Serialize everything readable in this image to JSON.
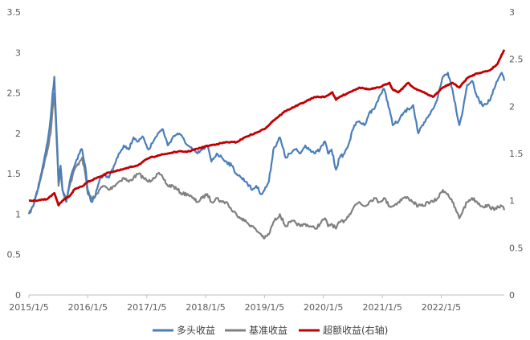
{
  "chart_data": {
    "type": "line",
    "title": "",
    "xlabel": "",
    "ylabel": "",
    "x_ticks": [
      "2015/1/5",
      "2016/1/5",
      "2017/1/5",
      "2018/1/5",
      "2019/1/5",
      "2020/1/5",
      "2021/1/5",
      "2022/1/5"
    ],
    "xlim": [
      "2015/1/5",
      "2023/1/31"
    ],
    "left_axis": {
      "ticks": [
        "0",
        "0.5",
        "1",
        "1.5",
        "2",
        "2.5",
        "3",
        "3.5"
      ],
      "ylim": [
        0,
        3.5
      ]
    },
    "right_axis": {
      "ticks": [
        "0",
        "0.5",
        "1",
        "1.5",
        "2",
        "2.5",
        "3"
      ],
      "ylim": [
        0,
        3
      ]
    },
    "grid": false,
    "legend_position": "bottom",
    "series": [
      {
        "name": "多头收益",
        "axis": "left",
        "color": "#4a7ebb",
        "x": [
          "2015/1/5",
          "2015/2/1",
          "2015/3/1",
          "2015/4/1",
          "2015/5/1",
          "2015/5/20",
          "2015/6/1",
          "2015/6/12",
          "2015/6/20",
          "2015/7/1",
          "2015/7/8",
          "2015/7/20",
          "2015/8/1",
          "2015/8/25",
          "2015/9/15",
          "2015/10/15",
          "2015/11/15",
          "2015/12/1",
          "2015/12/20",
          "2016/1/5",
          "2016/1/28",
          "2016/2/15",
          "2016/3/15",
          "2016/4/15",
          "2016/5/15",
          "2016/6/15",
          "2016/7/15",
          "2016/8/15",
          "2016/9/15",
          "2016/10/15",
          "2016/11/15",
          "2016/12/15",
          "2017/1/15",
          "2017/2/15",
          "2017/3/15",
          "2017/4/15",
          "2017/5/15",
          "2017/6/15",
          "2017/7/15",
          "2017/8/15",
          "2017/9/15",
          "2017/10/15",
          "2017/11/15",
          "2017/12/15",
          "2018/1/15",
          "2018/2/10",
          "2018/3/15",
          "2018/4/15",
          "2018/5/15",
          "2018/6/15",
          "2018/7/15",
          "2018/8/15",
          "2018/9/15",
          "2018/10/20",
          "2018/11/15",
          "2018/12/15",
          "2019/1/5",
          "2019/2/1",
          "2019/3/1",
          "2019/4/10",
          "2019/5/15",
          "2019/6/15",
          "2019/7/15",
          "2019/8/15",
          "2019/9/15",
          "2019/10/15",
          "2019/11/15",
          "2019/12/15",
          "2020/1/15",
          "2020/2/3",
          "2020/2/25",
          "2020/3/23",
          "2020/4/15",
          "2020/5/15",
          "2020/6/15",
          "2020/7/15",
          "2020/8/15",
          "2020/9/15",
          "2020/10/15",
          "2020/11/15",
          "2020/12/15",
          "2021/1/15",
          "2021/2/18",
          "2021/3/10",
          "2021/4/15",
          "2021/5/15",
          "2021/6/15",
          "2021/7/15",
          "2021/8/15",
          "2021/9/15",
          "2021/10/15",
          "2021/11/15",
          "2021/12/15",
          "2022/1/15",
          "2022/2/15",
          "2022/3/15",
          "2022/4/27",
          "2022/5/20",
          "2022/6/15",
          "2022/7/15",
          "2022/8/15",
          "2022/9/15",
          "2022/10/31",
          "2022/11/30",
          "2022/12/20",
          "2023/1/15",
          "2023/1/31"
        ],
        "y": [
          1.0,
          1.1,
          1.3,
          1.6,
          1.9,
          2.2,
          2.5,
          2.7,
          2.3,
          1.8,
          1.4,
          1.6,
          1.3,
          1.15,
          1.4,
          1.6,
          1.75,
          1.8,
          1.6,
          1.3,
          1.15,
          1.2,
          1.4,
          1.5,
          1.45,
          1.6,
          1.75,
          1.85,
          1.8,
          1.95,
          1.9,
          1.95,
          1.8,
          1.9,
          2.0,
          2.05,
          1.85,
          1.95,
          2.0,
          1.95,
          1.85,
          1.8,
          1.75,
          1.8,
          1.85,
          1.65,
          1.75,
          1.7,
          1.65,
          1.6,
          1.5,
          1.45,
          1.4,
          1.3,
          1.35,
          1.25,
          1.3,
          1.4,
          1.8,
          1.95,
          1.7,
          1.75,
          1.8,
          1.75,
          1.85,
          1.8,
          1.75,
          1.8,
          1.9,
          1.75,
          1.8,
          1.55,
          1.7,
          1.75,
          1.9,
          2.1,
          2.15,
          2.1,
          2.25,
          2.3,
          2.45,
          2.55,
          2.3,
          2.1,
          2.15,
          2.25,
          2.3,
          2.35,
          2.0,
          2.1,
          2.2,
          2.3,
          2.45,
          2.7,
          2.75,
          2.55,
          2.1,
          2.3,
          2.6,
          2.65,
          2.45,
          2.35,
          2.4,
          2.55,
          2.65,
          2.75,
          2.65
        ]
      },
      {
        "name": "基准收益",
        "axis": "left",
        "color": "#808080",
        "x": [
          "2015/1/5",
          "2015/2/1",
          "2015/3/1",
          "2015/4/1",
          "2015/5/1",
          "2015/5/20",
          "2015/6/1",
          "2015/6/12",
          "2015/6/20",
          "2015/7/1",
          "2015/7/8",
          "2015/7/20",
          "2015/8/1",
          "2015/8/25",
          "2015/9/15",
          "2015/10/15",
          "2015/11/15",
          "2015/12/1",
          "2015/12/20",
          "2016/1/5",
          "2016/1/28",
          "2016/2/15",
          "2016/3/15",
          "2016/4/15",
          "2016/5/15",
          "2016/6/15",
          "2016/7/15",
          "2016/8/15",
          "2016/9/15",
          "2016/10/15",
          "2016/11/15",
          "2016/12/15",
          "2017/1/15",
          "2017/2/15",
          "2017/3/15",
          "2017/4/15",
          "2017/5/15",
          "2017/6/15",
          "2017/7/15",
          "2017/8/15",
          "2017/9/15",
          "2017/10/15",
          "2017/11/15",
          "2017/12/15",
          "2018/1/15",
          "2018/2/10",
          "2018/3/15",
          "2018/4/15",
          "2018/5/15",
          "2018/6/15",
          "2018/7/15",
          "2018/8/15",
          "2018/9/15",
          "2018/10/20",
          "2018/11/15",
          "2018/12/15",
          "2019/1/5",
          "2019/2/1",
          "2019/3/1",
          "2019/4/10",
          "2019/5/15",
          "2019/6/15",
          "2019/7/15",
          "2019/8/15",
          "2019/9/15",
          "2019/10/15",
          "2019/11/15",
          "2019/12/15",
          "2020/1/15",
          "2020/2/3",
          "2020/2/25",
          "2020/3/23",
          "2020/4/15",
          "2020/5/15",
          "2020/6/15",
          "2020/7/15",
          "2020/8/15",
          "2020/9/15",
          "2020/10/15",
          "2020/11/15",
          "2020/12/15",
          "2021/1/15",
          "2021/2/18",
          "2021/3/10",
          "2021/4/15",
          "2021/5/15",
          "2021/6/15",
          "2021/7/15",
          "2021/8/15",
          "2021/9/15",
          "2021/10/15",
          "2021/11/15",
          "2021/12/15",
          "2022/1/15",
          "2022/2/15",
          "2022/3/15",
          "2022/4/27",
          "2022/5/20",
          "2022/6/15",
          "2022/7/15",
          "2022/8/15",
          "2022/9/15",
          "2022/10/31",
          "2022/11/30",
          "2022/12/20",
          "2023/1/15",
          "2023/1/31"
        ],
        "y": [
          1.0,
          1.1,
          1.3,
          1.55,
          1.8,
          2.0,
          2.3,
          2.5,
          2.2,
          1.7,
          1.35,
          1.55,
          1.3,
          1.2,
          1.35,
          1.55,
          1.65,
          1.7,
          1.5,
          1.25,
          1.2,
          1.2,
          1.3,
          1.35,
          1.3,
          1.35,
          1.4,
          1.45,
          1.4,
          1.45,
          1.5,
          1.45,
          1.4,
          1.45,
          1.5,
          1.45,
          1.35,
          1.35,
          1.3,
          1.25,
          1.25,
          1.2,
          1.15,
          1.2,
          1.25,
          1.15,
          1.2,
          1.15,
          1.15,
          1.05,
          1.0,
          0.95,
          0.9,
          0.85,
          0.8,
          0.75,
          0.7,
          0.75,
          0.9,
          1.0,
          0.85,
          0.9,
          0.9,
          0.85,
          0.88,
          0.85,
          0.82,
          0.88,
          0.95,
          0.85,
          0.88,
          0.82,
          0.9,
          0.92,
          1.0,
          1.1,
          1.15,
          1.1,
          1.15,
          1.2,
          1.15,
          1.2,
          1.1,
          1.1,
          1.15,
          1.2,
          1.2,
          1.15,
          1.1,
          1.1,
          1.15,
          1.15,
          1.2,
          1.3,
          1.25,
          1.15,
          0.95,
          1.05,
          1.15,
          1.2,
          1.15,
          1.1,
          1.1,
          1.05,
          1.1,
          1.1,
          1.05
        ]
      },
      {
        "name": "超额收益(右轴)",
        "axis": "right",
        "color": "#c00000",
        "x": [
          "2015/1/5",
          "2015/3/1",
          "2015/5/1",
          "2015/6/12",
          "2015/7/8",
          "2015/8/1",
          "2015/9/15",
          "2015/10/15",
          "2015/12/1",
          "2016/1/5",
          "2016/3/15",
          "2016/5/15",
          "2016/7/15",
          "2016/9/15",
          "2016/11/15",
          "2017/1/15",
          "2017/3/15",
          "2017/5/15",
          "2017/7/15",
          "2017/9/15",
          "2017/11/15",
          "2018/1/15",
          "2018/3/15",
          "2018/5/15",
          "2018/7/15",
          "2018/9/15",
          "2018/11/15",
          "2019/1/5",
          "2019/3/1",
          "2019/5/15",
          "2019/7/15",
          "2019/9/15",
          "2019/11/15",
          "2020/1/15",
          "2020/3/1",
          "2020/3/23",
          "2020/4/15",
          "2020/6/15",
          "2020/8/15",
          "2020/10/15",
          "2020/12/15",
          "2021/2/18",
          "2021/3/10",
          "2021/4/15",
          "2021/5/15",
          "2021/6/15",
          "2021/7/15",
          "2021/9/15",
          "2021/11/15",
          "2022/1/15",
          "2022/3/15",
          "2022/4/27",
          "2022/6/15",
          "2022/8/15",
          "2022/10/31",
          "2022/12/20",
          "2023/1/15",
          "2023/1/31"
        ],
        "y": [
          1.0,
          1.0,
          1.02,
          1.08,
          0.95,
          1.0,
          1.05,
          1.12,
          1.15,
          1.2,
          1.25,
          1.3,
          1.32,
          1.35,
          1.38,
          1.45,
          1.48,
          1.5,
          1.52,
          1.52,
          1.55,
          1.58,
          1.6,
          1.62,
          1.62,
          1.68,
          1.72,
          1.76,
          1.85,
          1.95,
          2.0,
          2.05,
          2.1,
          2.1,
          2.15,
          2.07,
          2.1,
          2.15,
          2.2,
          2.18,
          2.2,
          2.25,
          2.18,
          2.15,
          2.2,
          2.25,
          2.2,
          2.15,
          2.1,
          2.2,
          2.25,
          2.2,
          2.3,
          2.35,
          2.38,
          2.45,
          2.55,
          2.6
        ]
      }
    ]
  }
}
